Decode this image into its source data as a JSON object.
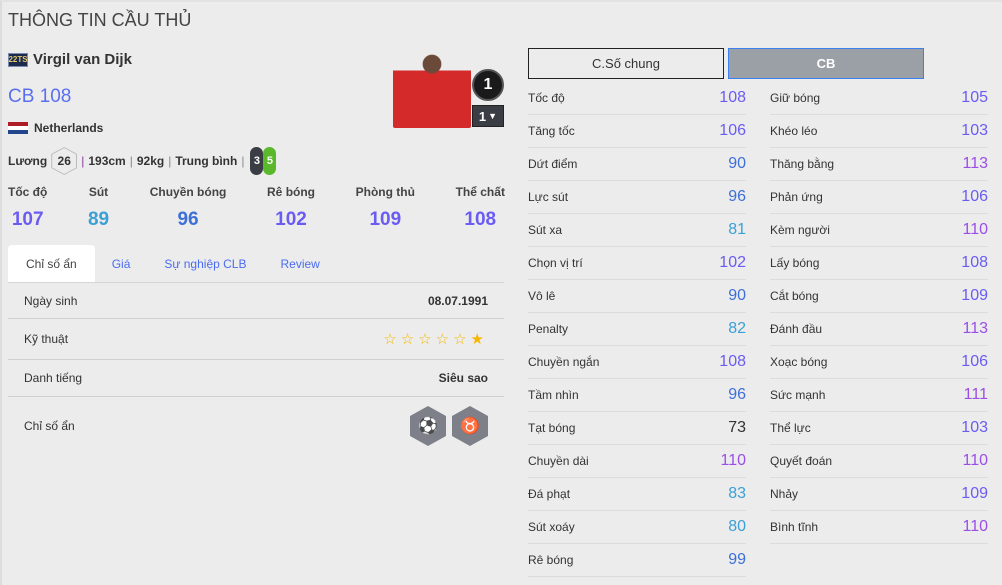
{
  "title": "THÔNG TIN CẦU THỦ",
  "player": {
    "season_badge": "22TS",
    "name": "Virgil van Dijk",
    "position_ovr": "CB 108",
    "nation": "Netherlands",
    "salary_label": "Lương",
    "salary": "26",
    "height": "193cm",
    "weight": "92kg",
    "body": "Trung bình",
    "weak_foot": "3",
    "strong_foot": "5",
    "rank": "1",
    "level": "1"
  },
  "summary": [
    {
      "label": "Tốc độ",
      "value": "107"
    },
    {
      "label": "Sút",
      "value": "89"
    },
    {
      "label": "Chuyền bóng",
      "value": "96"
    },
    {
      "label": "Rê bóng",
      "value": "102"
    },
    {
      "label": "Phòng thủ",
      "value": "109"
    },
    {
      "label": "Thể chất",
      "value": "108"
    }
  ],
  "tabs": [
    "Chỉ số ẩn",
    "Giá",
    "Sự nghiệp CLB",
    "Review"
  ],
  "details": {
    "birth_label": "Ngày sinh",
    "birth": "08.07.1991",
    "skill_label": "Kỹ thuật",
    "skill_stars": 1,
    "skill_max": 6,
    "rep_label": "Danh tiếng",
    "rep": "Siêu sao",
    "hidden_label": "Chỉ số ẩn",
    "hidden_traits": [
      "long-throw-icon",
      "buffalo-icon"
    ]
  },
  "stat_buttons": {
    "general": "C.Số chung",
    "position": "CB"
  },
  "stats_left": [
    {
      "label": "Tốc độ",
      "value": "108"
    },
    {
      "label": "Tăng tốc",
      "value": "106"
    },
    {
      "label": "Dứt điểm",
      "value": "90"
    },
    {
      "label": "Lực sút",
      "value": "96"
    },
    {
      "label": "Sút xa",
      "value": "81"
    },
    {
      "label": "Chọn vị trí",
      "value": "102"
    },
    {
      "label": "Vô lê",
      "value": "90"
    },
    {
      "label": "Penalty",
      "value": "82"
    },
    {
      "label": "Chuyền ngắn",
      "value": "108"
    },
    {
      "label": "Tầm nhìn",
      "value": "96"
    },
    {
      "label": "Tạt bóng",
      "value": "73"
    },
    {
      "label": "Chuyền dài",
      "value": "110"
    },
    {
      "label": "Đá phạt",
      "value": "83"
    },
    {
      "label": "Sút xoáy",
      "value": "80"
    },
    {
      "label": "Rê bóng",
      "value": "99"
    }
  ],
  "stats_right": [
    {
      "label": "Giữ bóng",
      "value": "105"
    },
    {
      "label": "Khéo léo",
      "value": "103"
    },
    {
      "label": "Thăng bằng",
      "value": "113"
    },
    {
      "label": "Phản ứng",
      "value": "106"
    },
    {
      "label": "Kèm người",
      "value": "110"
    },
    {
      "label": "Lấy bóng",
      "value": "108"
    },
    {
      "label": "Cắt bóng",
      "value": "109"
    },
    {
      "label": "Đánh đầu",
      "value": "113"
    },
    {
      "label": "Xoạc bóng",
      "value": "106"
    },
    {
      "label": "Sức mạnh",
      "value": "111"
    },
    {
      "label": "Thể lực",
      "value": "103"
    },
    {
      "label": "Quyết đoán",
      "value": "110"
    },
    {
      "label": "Nhảy",
      "value": "109"
    },
    {
      "label": "Bình tĩnh",
      "value": "110"
    }
  ],
  "colors": {
    "tier110": "#9a4ee6",
    "tier100": "#6a5cf2",
    "tier90": "#3d6fd8",
    "tier80": "#3aa0d6",
    "tier70": "#333333",
    "weak_foot": "#3a3d44",
    "strong_foot": "#5ab82a"
  }
}
